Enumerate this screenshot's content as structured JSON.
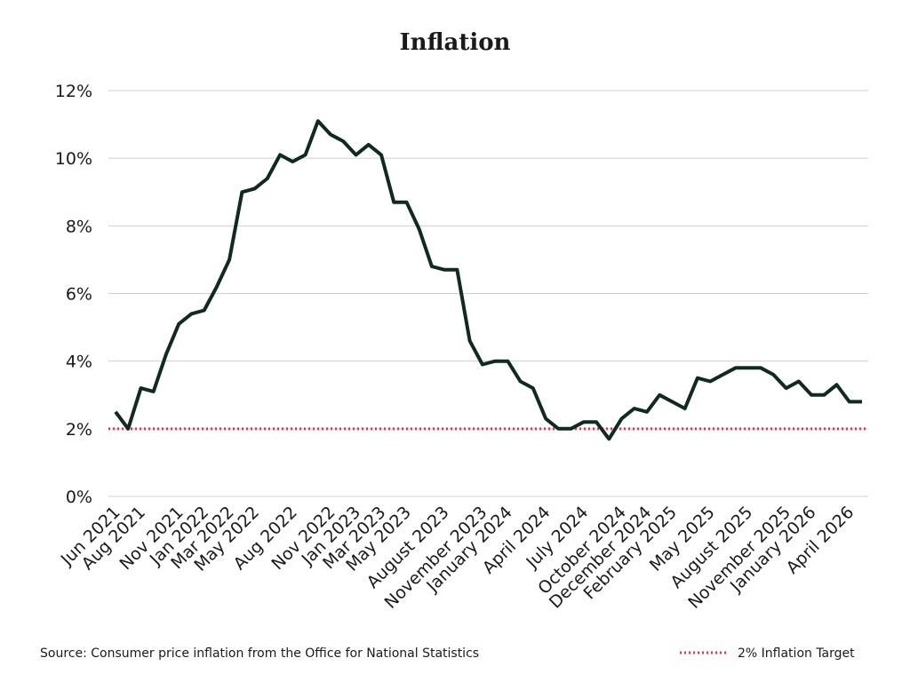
{
  "chart_data": {
    "type": "line",
    "title": "Inflation",
    "categories": [
      "Jun 2021",
      null,
      "Aug 2021",
      null,
      null,
      "Nov 2021",
      null,
      "Jan 2022",
      null,
      "Mar 2022",
      null,
      "May 2022",
      null,
      null,
      "Aug 2022",
      null,
      null,
      "Nov 2022",
      null,
      "Jan 2023",
      null,
      "Mar 2023",
      null,
      "May 2023",
      null,
      null,
      "August 2023",
      null,
      null,
      "November 2023",
      null,
      "January 2024",
      null,
      null,
      "April 2024",
      null,
      null,
      "July 2024",
      null,
      null,
      "October 2024",
      null,
      "December 2024",
      null,
      "February 2025",
      null,
      null,
      "May 2025",
      null,
      null,
      "August 2025",
      null,
      null,
      "November 2025",
      null,
      "January 2026",
      null,
      null,
      "April 2026",
      null
    ],
    "series": [
      {
        "name": "Inflation",
        "color": "#0f2a22",
        "values": [
          2.5,
          2.0,
          3.2,
          3.1,
          4.2,
          5.1,
          5.4,
          5.5,
          6.2,
          7.0,
          9.0,
          9.1,
          9.4,
          10.1,
          9.9,
          10.1,
          11.1,
          10.7,
          10.5,
          10.1,
          10.4,
          10.1,
          8.7,
          8.7,
          7.9,
          6.8,
          6.7,
          6.7,
          4.6,
          3.9,
          4.0,
          4.0,
          3.4,
          3.2,
          2.3,
          2.0,
          2.0,
          2.2,
          2.2,
          1.7,
          2.3,
          2.6,
          2.5,
          3.0,
          2.8,
          2.6,
          3.5,
          3.4,
          3.6,
          3.8,
          3.8,
          3.8,
          3.6,
          3.2,
          3.4,
          3.0,
          3.0,
          3.3,
          2.8,
          2.8
        ]
      }
    ],
    "target": {
      "name": "2% Inflation Target",
      "value": 2,
      "color": "#f0333d"
    },
    "ylim": [
      0,
      12
    ],
    "yticks": [
      {
        "value": 0,
        "label": "0%"
      },
      {
        "value": 2,
        "label": "2%"
      },
      {
        "value": 4,
        "label": "4%"
      },
      {
        "value": 6,
        "label": "6%"
      },
      {
        "value": 8,
        "label": "8%"
      },
      {
        "value": 10,
        "label": "10%"
      },
      {
        "value": 12,
        "label": "12%"
      }
    ],
    "grid": true,
    "source": "Source: Consumer price inflation from the Office for National Statistics"
  }
}
